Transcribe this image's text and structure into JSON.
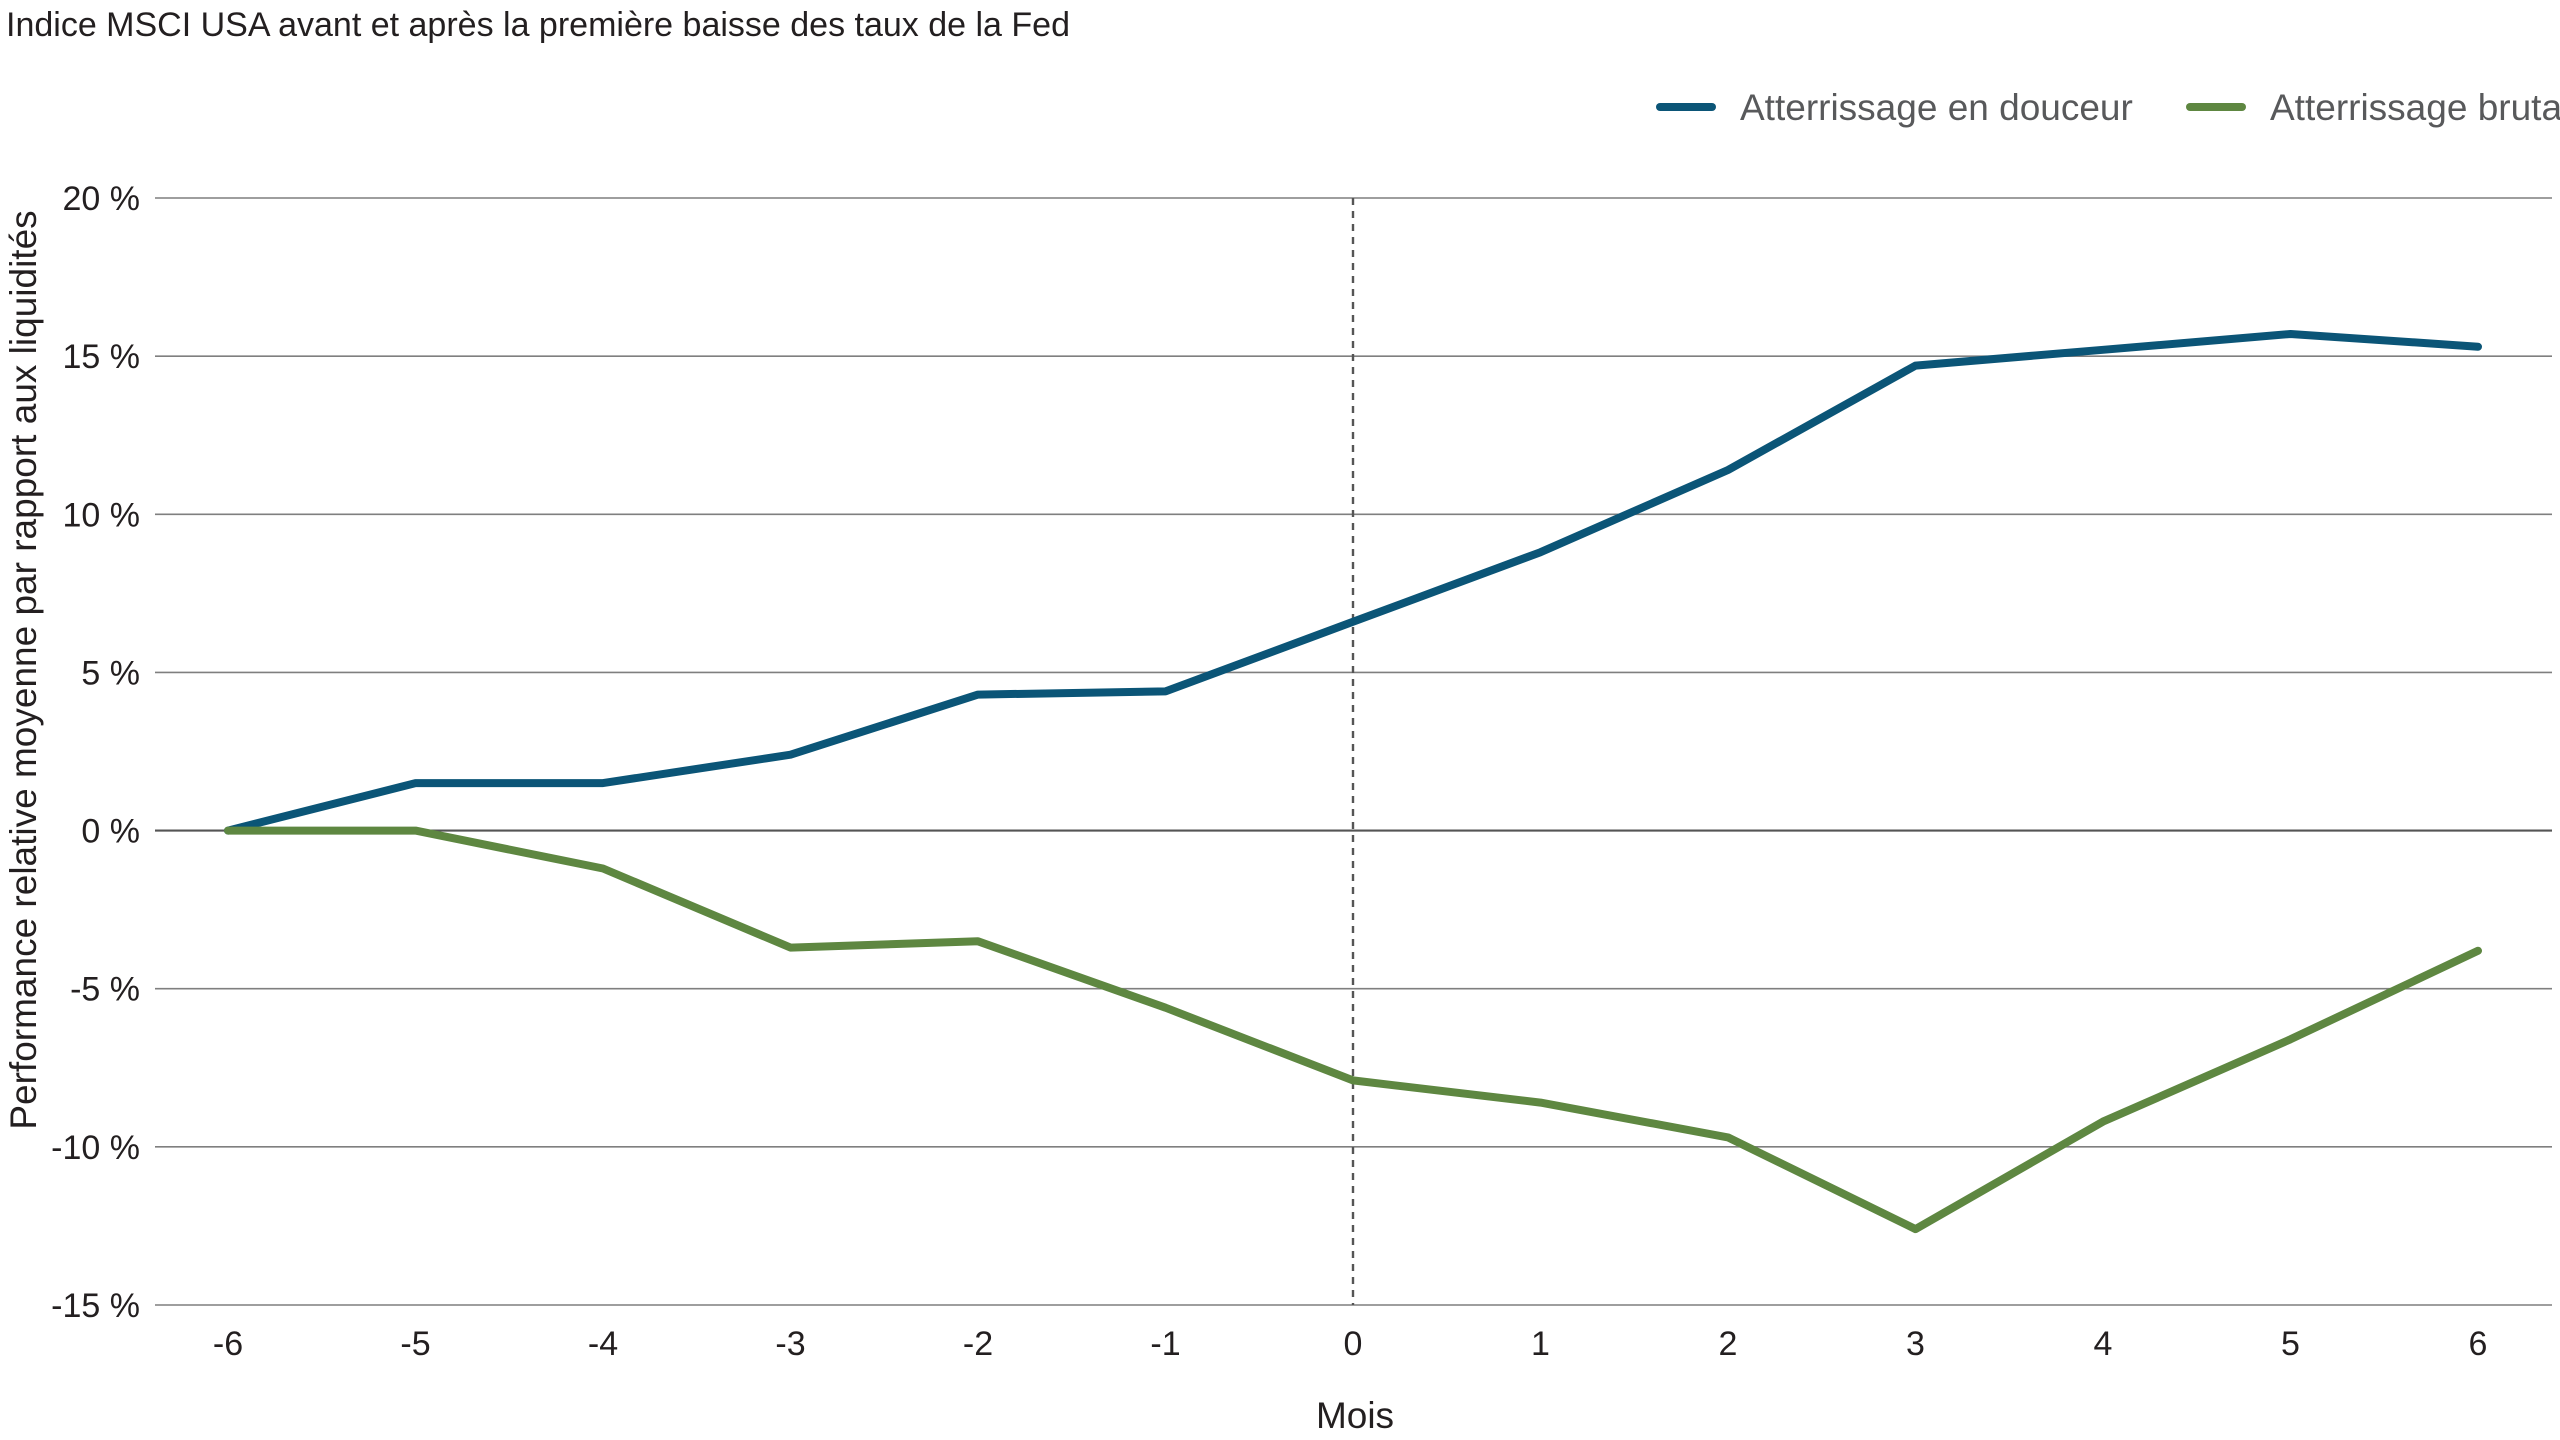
{
  "chart_data": {
    "type": "line",
    "title": "Indice MSCI USA avant et après la première baisse des taux de la Fed",
    "xlabel": "Mois",
    "ylabel": "Performance relative moyenne par rapport aux liquidités",
    "x": [
      -6,
      -5,
      -4,
      -3,
      -2,
      -1,
      0,
      1,
      2,
      3,
      4,
      5,
      6
    ],
    "x_tick_labels": [
      "-6",
      "-5",
      "-4",
      "-3",
      "-2",
      "-1",
      "0",
      "1",
      "2",
      "3",
      "4",
      "5",
      "6"
    ],
    "ylim": [
      -15,
      20
    ],
    "y_ticks": [
      20,
      15,
      10,
      5,
      0,
      -5,
      -10,
      -15
    ],
    "y_tick_labels": [
      "20 %",
      "15 %",
      "10 %",
      "5 %",
      "0 %",
      "-5 %",
      "-10 %",
      "-15 %"
    ],
    "grid": true,
    "legend_position": "top-right",
    "reference_line_x": 0,
    "series": [
      {
        "name": "Atterrissage en douceur",
        "color": "#0b5577",
        "values": [
          0.0,
          1.5,
          1.5,
          2.4,
          4.3,
          4.4,
          6.6,
          8.8,
          11.4,
          14.7,
          15.2,
          15.7,
          15.3
        ]
      },
      {
        "name": "Atterrissage brutal",
        "color": "#5e8741",
        "values": [
          0.0,
          0.0,
          -1.2,
          -3.7,
          -3.5,
          -5.6,
          -7.9,
          -8.6,
          -9.7,
          -12.6,
          -9.2,
          -6.6,
          -3.8
        ]
      }
    ]
  }
}
